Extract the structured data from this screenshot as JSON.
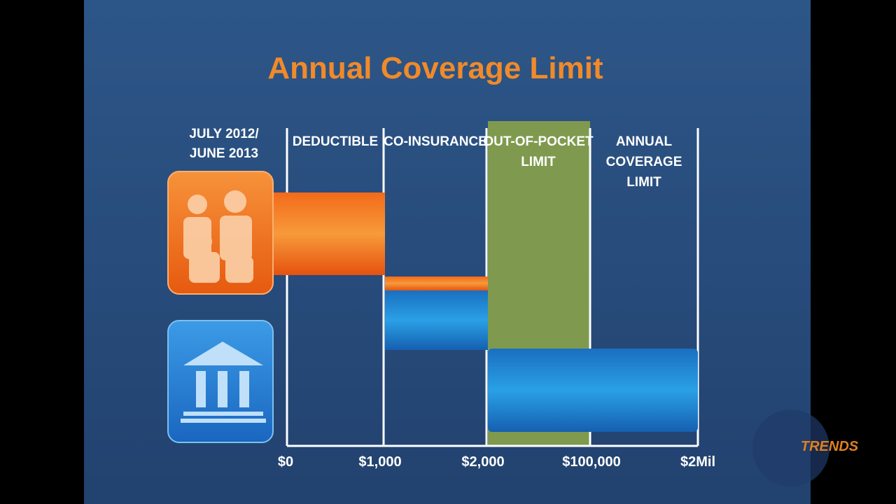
{
  "title": "Annual Coverage Limit",
  "period": {
    "lines": [
      "JULY 2012/",
      "JUNE 2013"
    ]
  },
  "columns": [
    {
      "lines": [
        "DEDUCTIBLE"
      ]
    },
    {
      "lines": [
        "CO-INSURANCE"
      ]
    },
    {
      "lines": [
        "OUT-OF-POCKET",
        "LIMIT"
      ]
    },
    {
      "lines": [
        "ANNUAL",
        "COVERAGE",
        "LIMIT"
      ]
    }
  ],
  "axis_labels": [
    "$0",
    "$1,000",
    "$2,000",
    "$100,000",
    "$2Mil"
  ],
  "watermark": "TRENDS"
}
